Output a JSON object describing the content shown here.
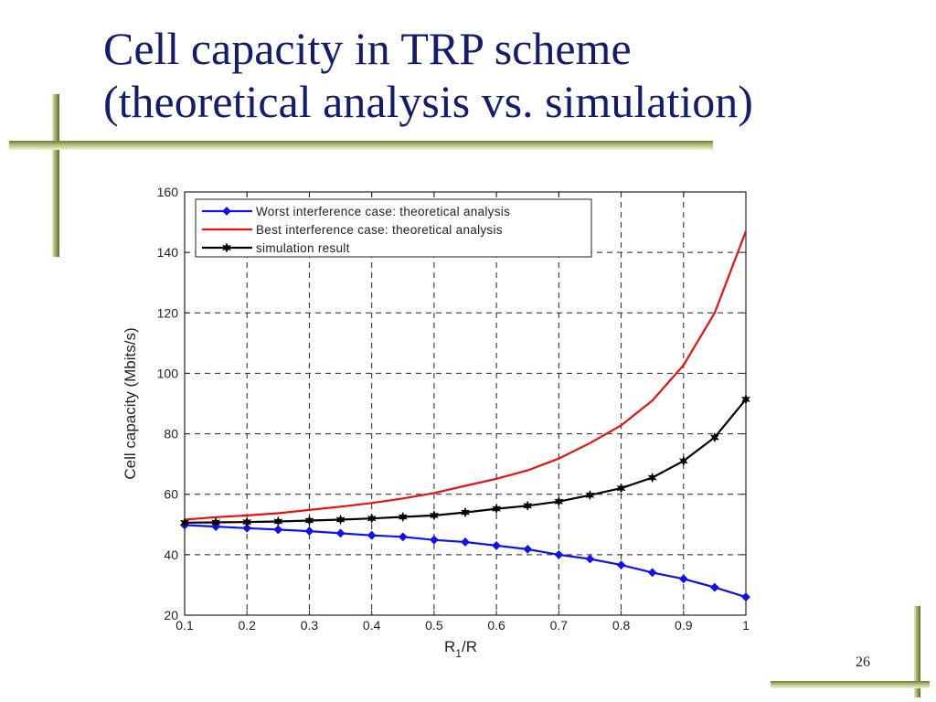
{
  "slide": {
    "title_line1": "Cell capacity in TRP scheme",
    "title_line2": "(theoretical analysis vs. simulation)",
    "page_number": "26"
  },
  "chart_data": {
    "type": "line",
    "xlabel": "R",
    "xlabel_sub": "1",
    "xlabel_suffix": "/R",
    "ylabel": "Cell capacity (Mbits/s)",
    "xlim": [
      0.1,
      1
    ],
    "ylim": [
      20,
      160
    ],
    "xticks": [
      0.1,
      0.2,
      0.3,
      0.4,
      0.5,
      0.6,
      0.7,
      0.8,
      0.9,
      1
    ],
    "xtick_labels": [
      "0.1",
      "0.2",
      "0.3",
      "0.4",
      "0.5",
      "0.6",
      "0.7",
      "0.8",
      "0.9",
      "1"
    ],
    "yticks": [
      20,
      40,
      60,
      80,
      100,
      120,
      140,
      160
    ],
    "ytick_labels": [
      "20",
      "40",
      "60",
      "80",
      "100",
      "120",
      "140",
      "160"
    ],
    "grid": true,
    "grid_style": "dashed",
    "legend_position": "top-left",
    "x": [
      0.1,
      0.15,
      0.2,
      0.25,
      0.3,
      0.35,
      0.4,
      0.45,
      0.5,
      0.55,
      0.6,
      0.65,
      0.7,
      0.75,
      0.8,
      0.85,
      0.9,
      0.95,
      1.0
    ],
    "series": [
      {
        "name": "Worst interference case: theoretical analysis",
        "color": "#1010f0",
        "marker": "diamond",
        "values": [
          49.8,
          49.3,
          48.8,
          48.3,
          47.8,
          47.1,
          46.4,
          45.9,
          44.9,
          44.2,
          43.0,
          41.8,
          40.0,
          38.6,
          36.6,
          34.1,
          32.0,
          29.2,
          26.0
        ]
      },
      {
        "name": "Best interference case: theoretical analysis",
        "color": "#e81010",
        "marker": "none",
        "values": [
          51.6,
          52.4,
          53.0,
          53.7,
          54.8,
          55.9,
          57.1,
          58.6,
          60.4,
          62.8,
          65.1,
          67.9,
          71.8,
          76.9,
          82.8,
          91.0,
          102.7,
          120.0,
          147.0
        ]
      },
      {
        "name": "simulation result",
        "color": "#000000",
        "marker": "star",
        "values": [
          50.6,
          50.7,
          50.8,
          51.0,
          51.3,
          51.6,
          52.0,
          52.5,
          53.0,
          54.0,
          55.2,
          56.2,
          57.6,
          59.7,
          62.0,
          65.5,
          71.0,
          78.8,
          91.4
        ]
      }
    ]
  }
}
